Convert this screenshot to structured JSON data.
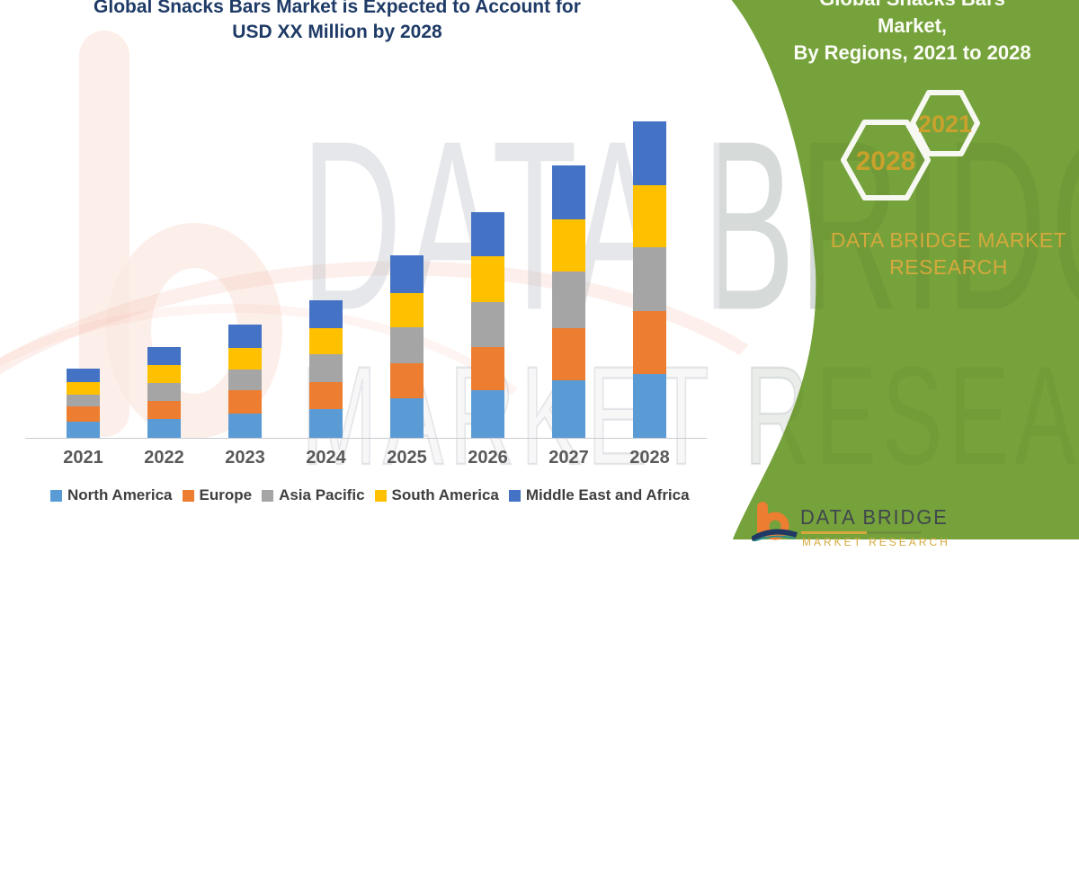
{
  "title": {
    "line1": "Global Snacks Bars Market is Expected to Account for",
    "line2": "USD XX Million by 2028"
  },
  "watermark": {
    "line1": "DATA BRIDGE",
    "line2": "MARKET RESEARCH"
  },
  "panel": {
    "heading_line1": "Global Snacks Bars Market,",
    "heading_line2": "By Regions, 2021 to 2028",
    "hexagon_left_label": "2028",
    "hexagon_right_label": "2021",
    "brand_line1": "DATA BRIDGE MARKET",
    "brand_line2": "RESEARCH",
    "colors": {
      "panel_green": "#76A23C",
      "gold": "#D4A93C",
      "hex_stroke": "#F6F8F1"
    }
  },
  "logo": {
    "text": "DATA BRIDGE",
    "subtext": "MARKET RESEARCH"
  },
  "chart_data": {
    "type": "bar",
    "stacked": true,
    "title": "Global Snacks Bars Market is Expected to Account for USD XX Million by 2028",
    "categories": [
      "2021",
      "2022",
      "2023",
      "2024",
      "2025",
      "2026",
      "2027",
      "2028"
    ],
    "series": [
      {
        "name": "North America",
        "color": "#5B9BD5",
        "values": [
          18,
          21,
          27,
          32,
          44,
          53,
          64,
          71
        ]
      },
      {
        "name": "Europe",
        "color": "#ED7D31",
        "values": [
          17,
          20,
          26,
          30,
          39,
          48,
          58,
          70
        ]
      },
      {
        "name": "Asia Pacific",
        "color": "#A5A5A5",
        "values": [
          13,
          20,
          23,
          31,
          40,
          50,
          63,
          71
        ]
      },
      {
        "name": "South America",
        "color": "#FFC000",
        "values": [
          14,
          20,
          24,
          29,
          38,
          51,
          58,
          69
        ]
      },
      {
        "name": "Middle East and Africa",
        "color": "#4472C4",
        "values": [
          15,
          20,
          26,
          31,
          42,
          49,
          60,
          71
        ]
      }
    ],
    "xlabel": "",
    "ylabel": "",
    "units": "USD Million (values illustrative, labeled XX)",
    "ylim": [
      0,
      360
    ],
    "grid": false,
    "legend_position": "bottom"
  }
}
